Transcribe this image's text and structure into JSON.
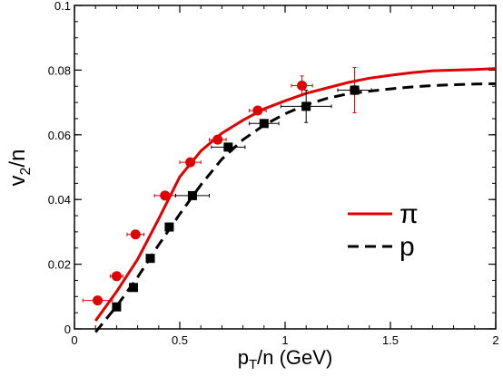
{
  "chart_data": {
    "type": "line",
    "xlabel": {
      "main": "p",
      "sub": "T",
      "rest": "/n (GeV)"
    },
    "ylabel": {
      "main": "v",
      "sub": "2",
      "rest": "/n"
    },
    "xlim": [
      0,
      2
    ],
    "ylim": [
      0,
      0.1
    ],
    "xticks": [
      0,
      0.5,
      1,
      1.5,
      2
    ],
    "xtick_labels": [
      "0",
      "0.5",
      "1",
      "1.5",
      "2"
    ],
    "yticks": [
      0,
      0.02,
      0.04,
      0.06,
      0.08,
      0.1
    ],
    "ytick_labels": [
      "0",
      "0.02",
      "0.04",
      "0.06",
      "0.08",
      "0.1"
    ],
    "grid": false,
    "legend_position": "center-right",
    "series": [
      {
        "name": "π",
        "kind": "line",
        "style": "solid",
        "color": "#e00000",
        "x": [
          0.1,
          0.2,
          0.3,
          0.4,
          0.5,
          0.6,
          0.7,
          0.8,
          0.9,
          1.0,
          1.1,
          1.2,
          1.3,
          1.4,
          1.5,
          1.6,
          1.7,
          1.8,
          1.9,
          2.0
        ],
        "y": [
          0.0025,
          0.0115,
          0.0215,
          0.034,
          0.047,
          0.055,
          0.0605,
          0.0645,
          0.068,
          0.0705,
          0.0728,
          0.0745,
          0.0762,
          0.0775,
          0.0784,
          0.0792,
          0.0798,
          0.08,
          0.0802,
          0.0805
        ]
      },
      {
        "name": "p",
        "kind": "line",
        "style": "dashed",
        "color": "#000000",
        "x": [
          0.1,
          0.2,
          0.3,
          0.4,
          0.5,
          0.6,
          0.7,
          0.8,
          0.9,
          1.0,
          1.1,
          1.2,
          1.3,
          1.4,
          1.5,
          1.6,
          1.7,
          1.8,
          1.9,
          2.0
        ],
        "y": [
          -0.001,
          0.007,
          0.016,
          0.026,
          0.0355,
          0.0445,
          0.0525,
          0.0585,
          0.063,
          0.0665,
          0.0693,
          0.0713,
          0.0727,
          0.0735,
          0.0742,
          0.0748,
          0.0752,
          0.0755,
          0.0757,
          0.0758
        ]
      },
      {
        "name": "π data",
        "kind": "points",
        "marker": "circle",
        "color": "#e00000",
        "points": [
          {
            "x": 0.11,
            "y": 0.0088,
            "xerr": 0.07,
            "yerr": 0.0
          },
          {
            "x": 0.2,
            "y": 0.0163,
            "xerr": 0.03,
            "yerr": 0.0
          },
          {
            "x": 0.29,
            "y": 0.0292,
            "xerr": 0.04,
            "yerr": 0.0
          },
          {
            "x": 0.43,
            "y": 0.0412,
            "xerr": 0.05,
            "yerr": 0.0
          },
          {
            "x": 0.55,
            "y": 0.0515,
            "xerr": 0.05,
            "yerr": 0.0
          },
          {
            "x": 0.68,
            "y": 0.0585,
            "xerr": 0.04,
            "yerr": 0.0
          },
          {
            "x": 0.87,
            "y": 0.0675,
            "xerr": 0.04,
            "yerr": 0.0
          },
          {
            "x": 1.08,
            "y": 0.0752,
            "xerr": 0.05,
            "yerr": 0.003
          },
          {
            "x": 1.33,
            "y": 0.0738,
            "xerr": 0.08,
            "yerr": 0.007
          }
        ]
      },
      {
        "name": "p data",
        "kind": "points",
        "marker": "square",
        "color": "#000000",
        "points": [
          {
            "x": 0.2,
            "y": 0.0068,
            "xerr": 0.0,
            "yerr": 0.0
          },
          {
            "x": 0.28,
            "y": 0.0128,
            "xerr": 0.0,
            "yerr": 0.0
          },
          {
            "x": 0.36,
            "y": 0.0218,
            "xerr": 0.0,
            "yerr": 0.0
          },
          {
            "x": 0.45,
            "y": 0.0315,
            "xerr": 0.0,
            "yerr": 0.0
          },
          {
            "x": 0.56,
            "y": 0.0412,
            "xerr": 0.08,
            "yerr": 0.0
          },
          {
            "x": 0.73,
            "y": 0.0562,
            "xerr": 0.08,
            "yerr": 0.0
          },
          {
            "x": 0.9,
            "y": 0.0635,
            "xerr": 0.07,
            "yerr": 0.0
          },
          {
            "x": 1.1,
            "y": 0.0688,
            "xerr": 0.12,
            "yerr": 0.005
          },
          {
            "x": 1.33,
            "y": 0.0738,
            "xerr": 0.08,
            "yerr": 0.0
          }
        ]
      }
    ],
    "legend": [
      {
        "label": "π",
        "style": "solid",
        "color": "#e00000"
      },
      {
        "label": "p",
        "style": "dashed",
        "color": "#000000"
      }
    ]
  }
}
